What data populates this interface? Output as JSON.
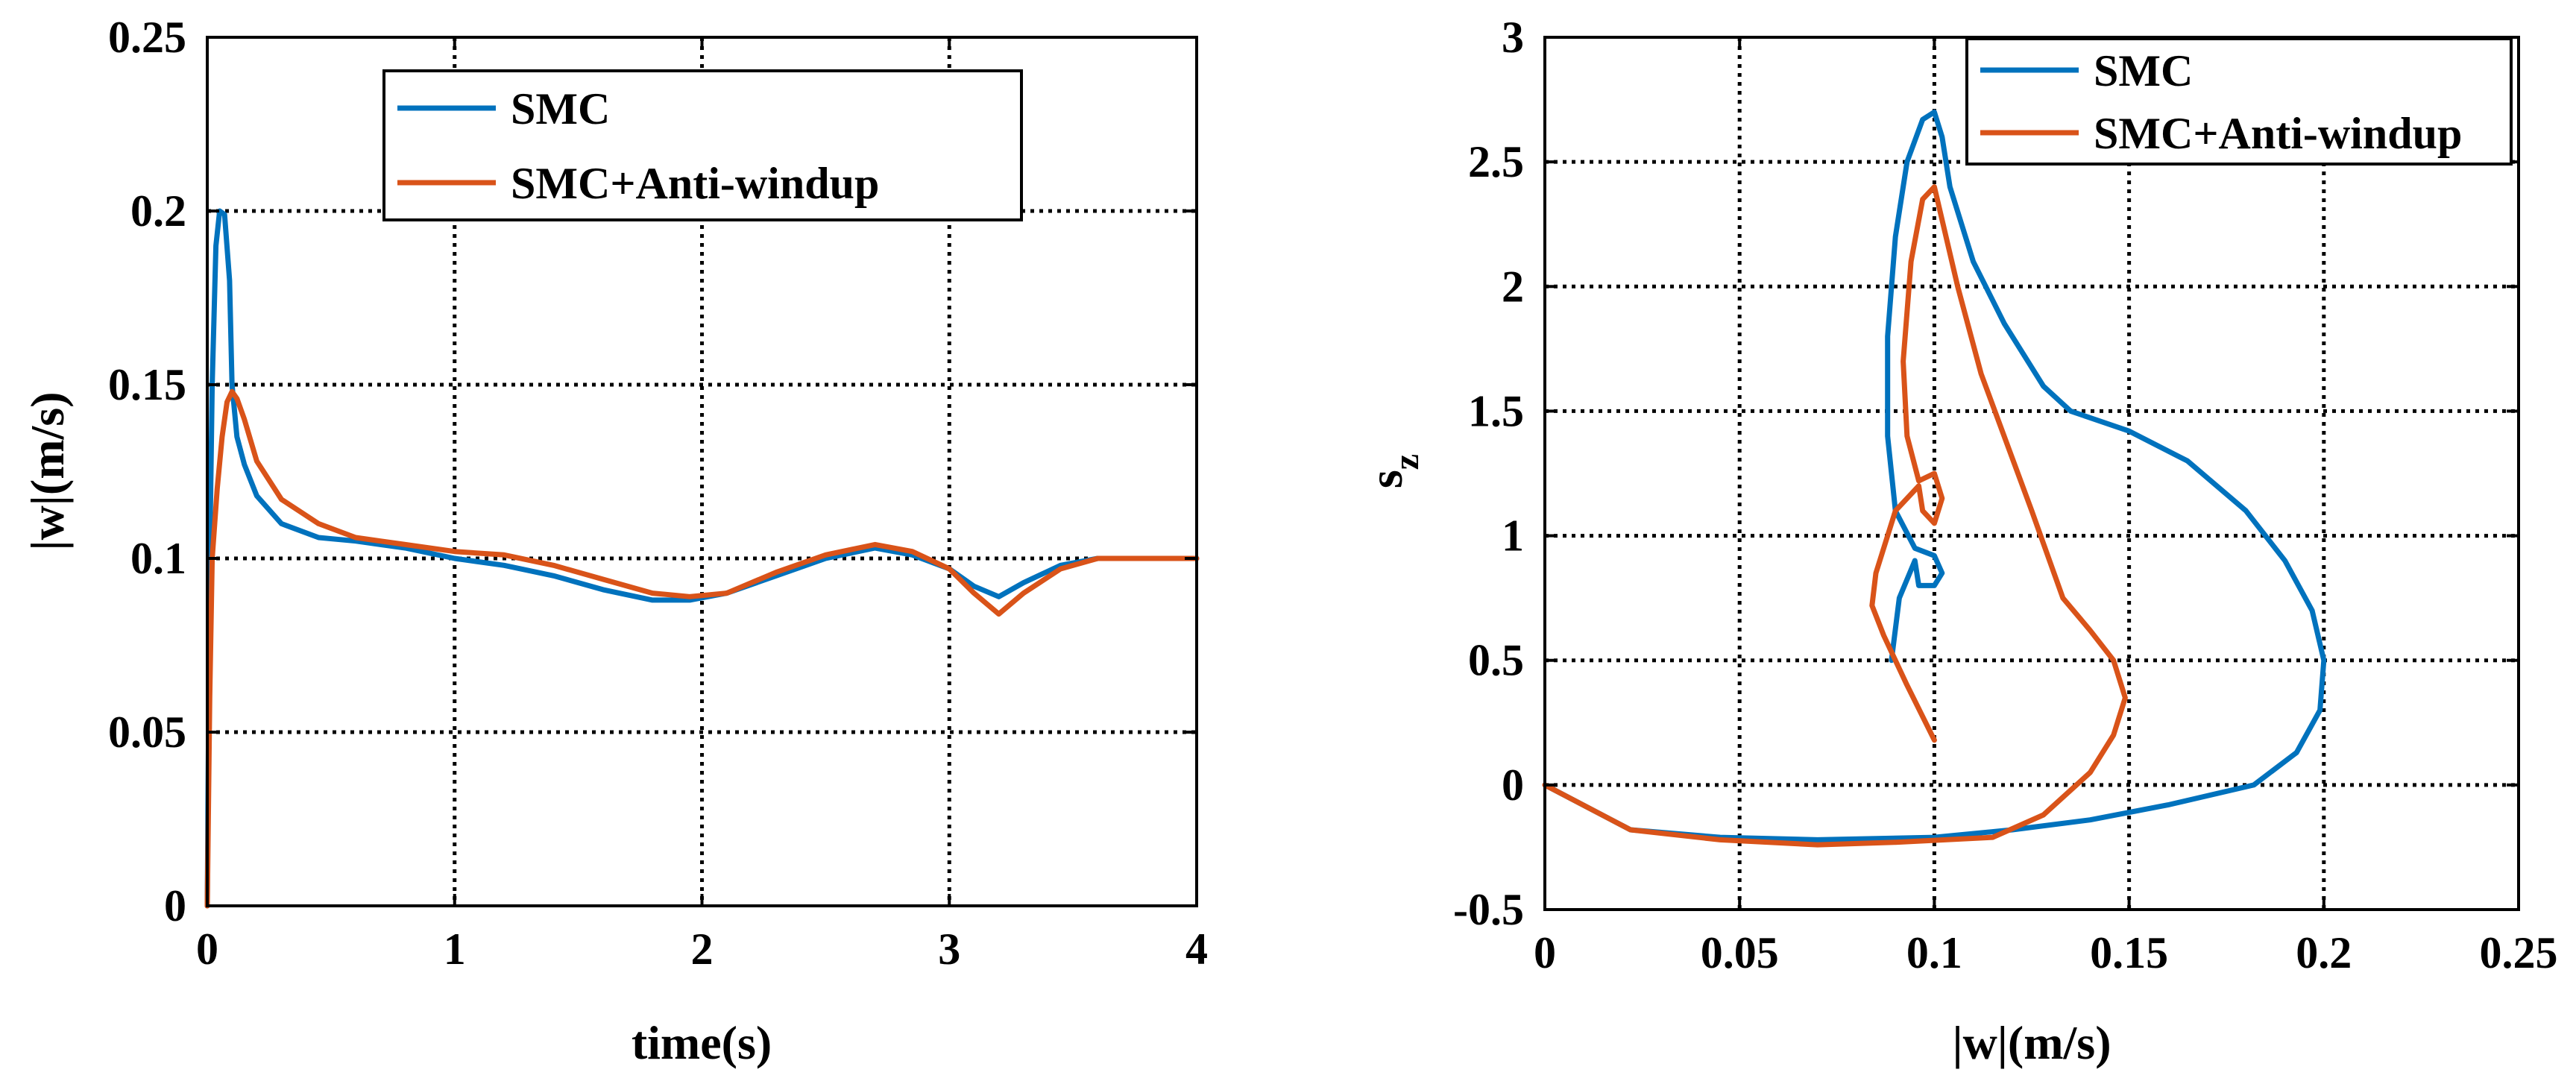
{
  "chart_data": [
    {
      "type": "line",
      "xlabel": "time(s)",
      "ylabel": "|w|(m/s)",
      "xlim": [
        0,
        4
      ],
      "ylim": [
        0,
        0.25
      ],
      "xticks": [
        0,
        1,
        2,
        3,
        4
      ],
      "yticks": [
        0,
        0.05,
        0.1,
        0.15,
        0.2,
        0.25
      ],
      "xtick_labels": [
        "0",
        "1",
        "2",
        "3",
        "4"
      ],
      "ytick_labels": [
        "0",
        "0.05",
        "0.1",
        "0.15",
        "0.2",
        "0.25"
      ],
      "grid": true,
      "legend": {
        "placement": "top-center",
        "entries": [
          "SMC",
          "SMC+Anti-windup"
        ]
      },
      "series": [
        {
          "name": "SMC",
          "color": "#0072BD",
          "points": [
            [
              0,
              0
            ],
            [
              0.01,
              0.1
            ],
            [
              0.02,
              0.15
            ],
            [
              0.035,
              0.19
            ],
            [
              0.05,
              0.2
            ],
            [
              0.07,
              0.199
            ],
            [
              0.09,
              0.18
            ],
            [
              0.1,
              0.15
            ],
            [
              0.12,
              0.135
            ],
            [
              0.15,
              0.127
            ],
            [
              0.2,
              0.118
            ],
            [
              0.3,
              0.11
            ],
            [
              0.45,
              0.106
            ],
            [
              0.6,
              0.105
            ],
            [
              0.8,
              0.103
            ],
            [
              1.0,
              0.1
            ],
            [
              1.2,
              0.098
            ],
            [
              1.4,
              0.095
            ],
            [
              1.6,
              0.091
            ],
            [
              1.8,
              0.088
            ],
            [
              1.95,
              0.088
            ],
            [
              2.1,
              0.09
            ],
            [
              2.3,
              0.095
            ],
            [
              2.5,
              0.1
            ],
            [
              2.7,
              0.103
            ],
            [
              2.85,
              0.101
            ],
            [
              3.0,
              0.097
            ],
            [
              3.1,
              0.092
            ],
            [
              3.2,
              0.089
            ],
            [
              3.3,
              0.093
            ],
            [
              3.45,
              0.098
            ],
            [
              3.6,
              0.1
            ],
            [
              4.0,
              0.1
            ]
          ]
        },
        {
          "name": "SMC+Anti-windup",
          "color": "#D95319",
          "points": [
            [
              0,
              0
            ],
            [
              0.01,
              0.06
            ],
            [
              0.02,
              0.1
            ],
            [
              0.04,
              0.12
            ],
            [
              0.06,
              0.135
            ],
            [
              0.08,
              0.145
            ],
            [
              0.1,
              0.148
            ],
            [
              0.12,
              0.146
            ],
            [
              0.15,
              0.14
            ],
            [
              0.2,
              0.128
            ],
            [
              0.3,
              0.117
            ],
            [
              0.45,
              0.11
            ],
            [
              0.6,
              0.106
            ],
            [
              0.8,
              0.104
            ],
            [
              1.0,
              0.102
            ],
            [
              1.2,
              0.101
            ],
            [
              1.4,
              0.098
            ],
            [
              1.6,
              0.094
            ],
            [
              1.8,
              0.09
            ],
            [
              1.95,
              0.089
            ],
            [
              2.1,
              0.09
            ],
            [
              2.3,
              0.096
            ],
            [
              2.5,
              0.101
            ],
            [
              2.7,
              0.104
            ],
            [
              2.85,
              0.102
            ],
            [
              3.0,
              0.097
            ],
            [
              3.1,
              0.09
            ],
            [
              3.2,
              0.084
            ],
            [
              3.3,
              0.09
            ],
            [
              3.45,
              0.097
            ],
            [
              3.6,
              0.1
            ],
            [
              4.0,
              0.1
            ]
          ]
        }
      ]
    },
    {
      "type": "line",
      "xlabel": "|w|(m/s)",
      "ylabel": "s_z",
      "ylabel_main": "s",
      "ylabel_sub": "z",
      "xlim": [
        0,
        0.25
      ],
      "ylim": [
        -0.5,
        3
      ],
      "xticks": [
        0,
        0.05,
        0.1,
        0.15,
        0.2,
        0.25
      ],
      "yticks": [
        -0.5,
        0,
        0.5,
        1,
        1.5,
        2,
        2.5,
        3
      ],
      "xtick_labels": [
        "0",
        "0.05",
        "0.1",
        "0.15",
        "0.2",
        "0.25"
      ],
      "ytick_labels": [
        "-0.5",
        "0",
        "0.5",
        "1",
        "1.5",
        "2",
        "2.5",
        "3"
      ],
      "grid": true,
      "legend": {
        "placement": "top-right",
        "entries": [
          "SMC",
          "SMC+Anti-windup"
        ]
      },
      "series": [
        {
          "name": "SMC",
          "color": "#0072BD",
          "points": [
            [
              0,
              0
            ],
            [
              0.022,
              -0.18
            ],
            [
              0.045,
              -0.21
            ],
            [
              0.07,
              -0.22
            ],
            [
              0.1,
              -0.21
            ],
            [
              0.12,
              -0.18
            ],
            [
              0.14,
              -0.14
            ],
            [
              0.16,
              -0.08
            ],
            [
              0.182,
              0
            ],
            [
              0.193,
              0.13
            ],
            [
              0.199,
              0.3
            ],
            [
              0.2,
              0.5
            ],
            [
              0.197,
              0.7
            ],
            [
              0.19,
              0.9
            ],
            [
              0.18,
              1.1
            ],
            [
              0.165,
              1.3
            ],
            [
              0.15,
              1.42
            ],
            [
              0.135,
              1.5
            ],
            [
              0.128,
              1.6
            ],
            [
              0.118,
              1.85
            ],
            [
              0.11,
              2.1
            ],
            [
              0.104,
              2.4
            ],
            [
              0.102,
              2.6
            ],
            [
              0.1,
              2.7
            ],
            [
              0.097,
              2.67
            ],
            [
              0.093,
              2.5
            ],
            [
              0.09,
              2.2
            ],
            [
              0.088,
              1.8
            ],
            [
              0.088,
              1.4
            ],
            [
              0.09,
              1.1
            ],
            [
              0.095,
              0.95
            ],
            [
              0.1,
              0.92
            ],
            [
              0.102,
              0.85
            ],
            [
              0.1,
              0.8
            ],
            [
              0.096,
              0.8
            ],
            [
              0.095,
              0.9
            ],
            [
              0.091,
              0.75
            ],
            [
              0.089,
              0.5
            ]
          ]
        },
        {
          "name": "SMC+Anti-windup",
          "color": "#D95319",
          "points": [
            [
              0,
              0
            ],
            [
              0.022,
              -0.18
            ],
            [
              0.045,
              -0.22
            ],
            [
              0.07,
              -0.24
            ],
            [
              0.09,
              -0.23
            ],
            [
              0.115,
              -0.21
            ],
            [
              0.128,
              -0.12
            ],
            [
              0.14,
              0.05
            ],
            [
              0.146,
              0.2
            ],
            [
              0.149,
              0.35
            ],
            [
              0.146,
              0.5
            ],
            [
              0.14,
              0.62
            ],
            [
              0.133,
              0.75
            ],
            [
              0.125,
              1.1
            ],
            [
              0.112,
              1.65
            ],
            [
              0.106,
              2.0
            ],
            [
              0.1,
              2.4
            ],
            [
              0.097,
              2.35
            ],
            [
              0.094,
              2.1
            ],
            [
              0.092,
              1.7
            ],
            [
              0.093,
              1.4
            ],
            [
              0.096,
              1.22
            ],
            [
              0.1,
              1.25
            ],
            [
              0.102,
              1.15
            ],
            [
              0.1,
              1.05
            ],
            [
              0.097,
              1.1
            ],
            [
              0.096,
              1.2
            ],
            [
              0.09,
              1.1
            ],
            [
              0.085,
              0.85
            ],
            [
              0.084,
              0.72
            ],
            [
              0.087,
              0.6
            ],
            [
              0.093,
              0.4
            ],
            [
              0.1,
              0.18
            ]
          ]
        }
      ]
    }
  ]
}
